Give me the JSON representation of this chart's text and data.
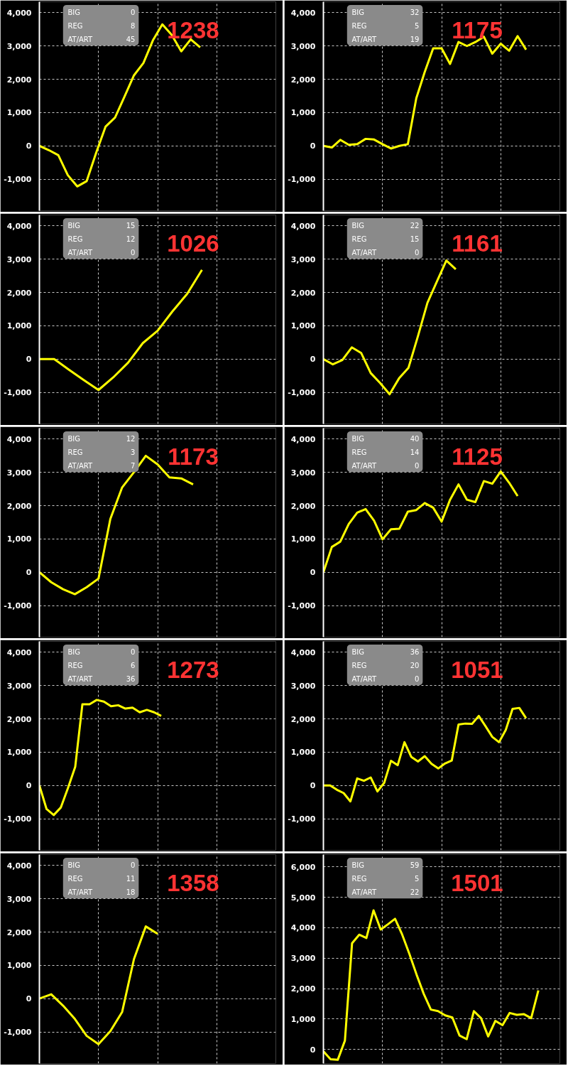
{
  "chart_data": [
    {
      "type": "line",
      "color": "#ffff00",
      "categories": [
        null,
        null,
        null,
        null,
        null,
        null,
        null,
        null,
        null,
        null,
        null,
        null,
        null,
        null,
        null,
        null,
        null,
        null,
        null,
        null,
        null,
        null,
        null,
        null,
        null,
        null
      ],
      "values": [
        0,
        -130,
        -280,
        -880,
        -1220,
        -1060,
        -210,
        580,
        850,
        1480,
        2120,
        2490,
        3170,
        3650,
        3330,
        2840,
        3200,
        2960,
        null,
        null,
        null,
        null,
        null,
        null,
        null,
        null
      ],
      "ylim": [
        -1950,
        4330
      ],
      "yticks": [
        {
          "value": -1000,
          "label": "-1,000"
        },
        0,
        {
          "value": 1000,
          "label": "1,000"
        },
        {
          "value": 2000,
          "label": "2,000"
        },
        {
          "value": 3000,
          "label": "3,000"
        },
        {
          "value": 4000,
          "label": "4,000"
        }
      ],
      "grid": true,
      "tick_labels": "y",
      "annotations": [
        "BIG",
        "0",
        "REG",
        "8",
        "AT/ART",
        "45",
        "1238"
      ]
    },
    {
      "type": "line",
      "color": "#ffff00",
      "categories": [
        null,
        null,
        null,
        null,
        null,
        null,
        null,
        null,
        null,
        null,
        null,
        null,
        null,
        null,
        null,
        null,
        null,
        null,
        null,
        null,
        null,
        null,
        null,
        null,
        null,
        null,
        null,
        null,
        null
      ],
      "values": [
        0,
        -50,
        180,
        30,
        50,
        210,
        190,
        50,
        -80,
        0,
        50,
        1430,
        2220,
        2930,
        2930,
        2460,
        3120,
        3000,
        3120,
        3280,
        2770,
        3070,
        2860,
        3300,
        2890,
        null,
        null,
        null,
        null
      ],
      "ylim": [
        -1950,
        4330
      ],
      "yticks": [
        {
          "value": -1000,
          "label": "-1,000"
        },
        0,
        {
          "value": 1000,
          "label": "1,000"
        },
        {
          "value": 2000,
          "label": "2,000"
        },
        {
          "value": 3000,
          "label": "3,000"
        },
        {
          "value": 4000,
          "label": "4,000"
        }
      ],
      "grid": true,
      "tick_labels": "y",
      "annotations": [
        "BIG",
        "32",
        "REG",
        "5",
        "AT/ART",
        "19",
        "1175"
      ]
    },
    {
      "type": "line",
      "color": "#ffff00",
      "categories": [
        null,
        null,
        null,
        null,
        null,
        null,
        null,
        null,
        null,
        null,
        null,
        null,
        null,
        null,
        null,
        null,
        null
      ],
      "values": [
        0,
        0,
        -320,
        -630,
        -930,
        -550,
        -110,
        480,
        850,
        1430,
        1960,
        2680,
        null,
        null,
        null,
        null,
        null
      ],
      "ylim": [
        -1950,
        4330
      ],
      "yticks": [
        {
          "value": -1000,
          "label": "-1,000"
        },
        0,
        {
          "value": 1000,
          "label": "1,000"
        },
        {
          "value": 2000,
          "label": "2,000"
        },
        {
          "value": 3000,
          "label": "3,000"
        },
        {
          "value": 4000,
          "label": "4,000"
        }
      ],
      "grid": true,
      "tick_labels": "y",
      "annotations": [
        "BIG",
        "15",
        "REG",
        "12",
        "AT/ART",
        "0",
        "1026"
      ]
    },
    {
      "type": "line",
      "color": "#ffff00",
      "categories": [
        null,
        null,
        null,
        null,
        null,
        null,
        null,
        null,
        null,
        null,
        null,
        null,
        null,
        null,
        null,
        null,
        null,
        null,
        null,
        null,
        null,
        null,
        null,
        null,
        null,
        null
      ],
      "values": [
        0,
        -160,
        -30,
        350,
        180,
        -420,
        -720,
        -1060,
        -580,
        -260,
        690,
        1690,
        2330,
        2960,
        2700,
        null,
        null,
        null,
        null,
        null,
        null,
        null,
        null,
        null,
        null,
        null
      ],
      "ylim": [
        -1950,
        4330
      ],
      "yticks": [
        {
          "value": -1000,
          "label": "-1,000"
        },
        0,
        {
          "value": 1000,
          "label": "1,000"
        },
        {
          "value": 2000,
          "label": "2,000"
        },
        {
          "value": 3000,
          "label": "3,000"
        },
        {
          "value": 4000,
          "label": "4,000"
        }
      ],
      "grid": true,
      "tick_labels": "y",
      "annotations": [
        "BIG",
        "22",
        "REG",
        "15",
        "AT/ART",
        "0",
        "1161"
      ]
    },
    {
      "type": "line",
      "color": "#ffff00",
      "categories": [
        null,
        null,
        null,
        null,
        null,
        null,
        null,
        null,
        null,
        null,
        null,
        null,
        null,
        null,
        null,
        null,
        null,
        null,
        null,
        null,
        null
      ],
      "values": [
        0,
        -300,
        -510,
        -660,
        -450,
        -190,
        1600,
        2550,
        3010,
        3500,
        3240,
        2850,
        2820,
        2640,
        null,
        null,
        null,
        null,
        null,
        null,
        null
      ],
      "ylim": [
        -1950,
        4330
      ],
      "yticks": [
        {
          "value": -1000,
          "label": "-1,000"
        },
        0,
        {
          "value": 1000,
          "label": "1,000"
        },
        {
          "value": 2000,
          "label": "2,000"
        },
        {
          "value": 3000,
          "label": "3,000"
        },
        {
          "value": 4000,
          "label": "4,000"
        }
      ],
      "grid": true,
      "tick_labels": "y",
      "annotations": [
        "BIG",
        "12",
        "REG",
        "3",
        "AT/ART",
        "7",
        "1173"
      ]
    },
    {
      "type": "line",
      "color": "#ffff00",
      "categories": [
        null,
        null,
        null,
        null,
        null,
        null,
        null,
        null,
        null,
        null,
        null,
        null,
        null,
        null,
        null,
        null,
        null,
        null,
        null,
        null,
        null,
        null,
        null,
        null,
        null,
        null,
        null,
        null,
        null
      ],
      "values": [
        0,
        760,
        920,
        1450,
        1790,
        1900,
        1550,
        990,
        1290,
        1310,
        1820,
        1870,
        2080,
        1940,
        1520,
        2180,
        2640,
        2180,
        2110,
        2740,
        2660,
        3030,
        2690,
        2290,
        null,
        null,
        null,
        null,
        null
      ],
      "ylim": [
        -1950,
        4330
      ],
      "yticks": [
        {
          "value": -1000,
          "label": "-1,000"
        },
        0,
        {
          "value": 1000,
          "label": "1,000"
        },
        {
          "value": 2000,
          "label": "2,000"
        },
        {
          "value": 3000,
          "label": "3,000"
        },
        {
          "value": 4000,
          "label": "4,000"
        }
      ],
      "grid": true,
      "tick_labels": "y",
      "annotations": [
        "BIG",
        "40",
        "REG",
        "14",
        "AT/ART",
        "0",
        "1125"
      ]
    },
    {
      "type": "line",
      "color": "#ffff00",
      "categories": [
        null,
        null,
        null,
        null,
        null,
        null,
        null,
        null,
        null,
        null,
        null,
        null,
        null,
        null,
        null,
        null,
        null,
        null,
        null,
        null,
        null,
        null,
        null,
        null,
        null,
        null,
        null,
        null,
        null,
        null,
        null,
        null,
        null,
        null
      ],
      "values": [
        0,
        -710,
        -890,
        -660,
        -70,
        560,
        2440,
        2440,
        2570,
        2520,
        2380,
        2410,
        2310,
        2340,
        2200,
        2270,
        2200,
        2090,
        null,
        null,
        null,
        null,
        null,
        null,
        null,
        null,
        null,
        null,
        null,
        null,
        null,
        null,
        null,
        null
      ],
      "ylim": [
        -1950,
        4330
      ],
      "yticks": [
        {
          "value": -1000,
          "label": "-1,000"
        },
        0,
        {
          "value": 1000,
          "label": "1,000"
        },
        {
          "value": 2000,
          "label": "2,000"
        },
        {
          "value": 3000,
          "label": "3,000"
        },
        {
          "value": 4000,
          "label": "4,000"
        }
      ],
      "grid": true,
      "tick_labels": "y",
      "annotations": [
        "BIG",
        "0",
        "REG",
        "6",
        "AT/ART",
        "36",
        "1273"
      ]
    },
    {
      "type": "line",
      "color": "#ffff00",
      "categories": [
        null,
        null,
        null,
        null,
        null,
        null,
        null,
        null,
        null,
        null,
        null,
        null,
        null,
        null,
        null,
        null,
        null,
        null,
        null,
        null,
        null,
        null,
        null,
        null,
        null,
        null,
        null,
        null,
        null,
        null,
        null,
        null,
        null,
        null,
        null,
        null
      ],
      "values": [
        0,
        0,
        -130,
        -230,
        -480,
        210,
        140,
        240,
        -180,
        80,
        740,
        610,
        1300,
        860,
        720,
        880,
        650,
        510,
        660,
        750,
        1830,
        1860,
        1850,
        2090,
        1780,
        1460,
        1300,
        1670,
        2300,
        2330,
        2020,
        null,
        null,
        null,
        null,
        null
      ],
      "ylim": [
        -1950,
        4330
      ],
      "yticks": [
        {
          "value": -1000,
          "label": "-1,000"
        },
        0,
        {
          "value": 1000,
          "label": "1,000"
        },
        {
          "value": 2000,
          "label": "2,000"
        },
        {
          "value": 3000,
          "label": "3,000"
        },
        {
          "value": 4000,
          "label": "4,000"
        }
      ],
      "grid": true,
      "tick_labels": "y",
      "annotations": [
        "BIG",
        "36",
        "REG",
        "20",
        "AT/ART",
        "0",
        "1051"
      ]
    },
    {
      "type": "line",
      "color": "#ffff00",
      "categories": [
        null,
        null,
        null,
        null,
        null,
        null,
        null,
        null,
        null,
        null,
        null,
        null,
        null,
        null,
        null,
        null,
        null,
        null,
        null,
        null,
        null
      ],
      "values": [
        0,
        130,
        -210,
        -610,
        -1120,
        -1370,
        -980,
        -400,
        1190,
        2170,
        1950,
        null,
        null,
        null,
        null,
        null,
        null,
        null,
        null,
        null,
        null
      ],
      "ylim": [
        -1950,
        4330
      ],
      "yticks": [
        {
          "value": -1000,
          "label": "-1,000"
        },
        0,
        {
          "value": 1000,
          "label": "1,000"
        },
        {
          "value": 2000,
          "label": "2,000"
        },
        {
          "value": 3000,
          "label": "3,000"
        },
        {
          "value": 4000,
          "label": "4,000"
        }
      ],
      "grid": true,
      "tick_labels": "y",
      "annotations": [
        "BIG",
        "0",
        "REG",
        "11",
        "AT/ART",
        "18",
        "1358"
      ]
    },
    {
      "type": "line",
      "color": "#ffff00",
      "categories": [
        null,
        null,
        null,
        null,
        null,
        null,
        null,
        null,
        null,
        null,
        null,
        null,
        null,
        null,
        null,
        null,
        null,
        null,
        null,
        null,
        null,
        null,
        null,
        null,
        null,
        null,
        null,
        null,
        null,
        null,
        null,
        null,
        null,
        null
      ],
      "values": [
        -60,
        -320,
        -340,
        290,
        3490,
        3770,
        3660,
        4570,
        3940,
        4110,
        4290,
        3770,
        3140,
        2460,
        1830,
        1310,
        1260,
        1120,
        1050,
        460,
        340,
        1260,
        1030,
        430,
        940,
        800,
        1200,
        1140,
        1160,
        1030,
        1940,
        null,
        null,
        null
      ],
      "ylim": [
        -460,
        6400
      ],
      "yticks": [
        0,
        {
          "value": 1000,
          "label": "1,000"
        },
        {
          "value": 2000,
          "label": "2,000"
        },
        {
          "value": 3000,
          "label": "3,000"
        },
        {
          "value": 4000,
          "label": "4,000"
        },
        {
          "value": 5000,
          "label": "5,000"
        },
        {
          "value": 6000,
          "label": "6,000"
        }
      ],
      "grid": true,
      "tick_labels": "y",
      "annotations": [
        "BIG",
        "59",
        "REG",
        "5",
        "AT/ART",
        "22",
        "1501"
      ]
    }
  ]
}
